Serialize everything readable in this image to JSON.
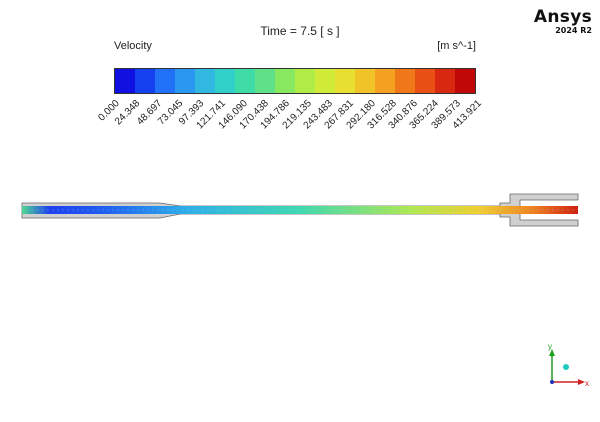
{
  "brand": {
    "name": "Ansys",
    "version": "2024 R2"
  },
  "header": {
    "time_label": "Time = 7.5 [ s ]"
  },
  "legend": {
    "variable": "Velocity",
    "units": "[m s^-1]",
    "tick_labels": [
      "0.000",
      "24.348",
      "48.697",
      "73.045",
      "97.393",
      "121.741",
      "146.090",
      "170.438",
      "194.786",
      "219.135",
      "243.483",
      "267.831",
      "292.180",
      "316.528",
      "340.876",
      "365.224",
      "389.573",
      "413.921"
    ],
    "colors": [
      "#1010e0",
      "#1540f0",
      "#2070f8",
      "#2a98f0",
      "#30b8e0",
      "#30d0c8",
      "#40dca8",
      "#60e088",
      "#88e860",
      "#b0ec48",
      "#d0ec38",
      "#e8e030",
      "#f0c428",
      "#f4a020",
      "#f07818",
      "#e85014",
      "#d82810",
      "#c00808"
    ]
  },
  "axes": {
    "y_label": "y",
    "x_label": "x"
  }
}
